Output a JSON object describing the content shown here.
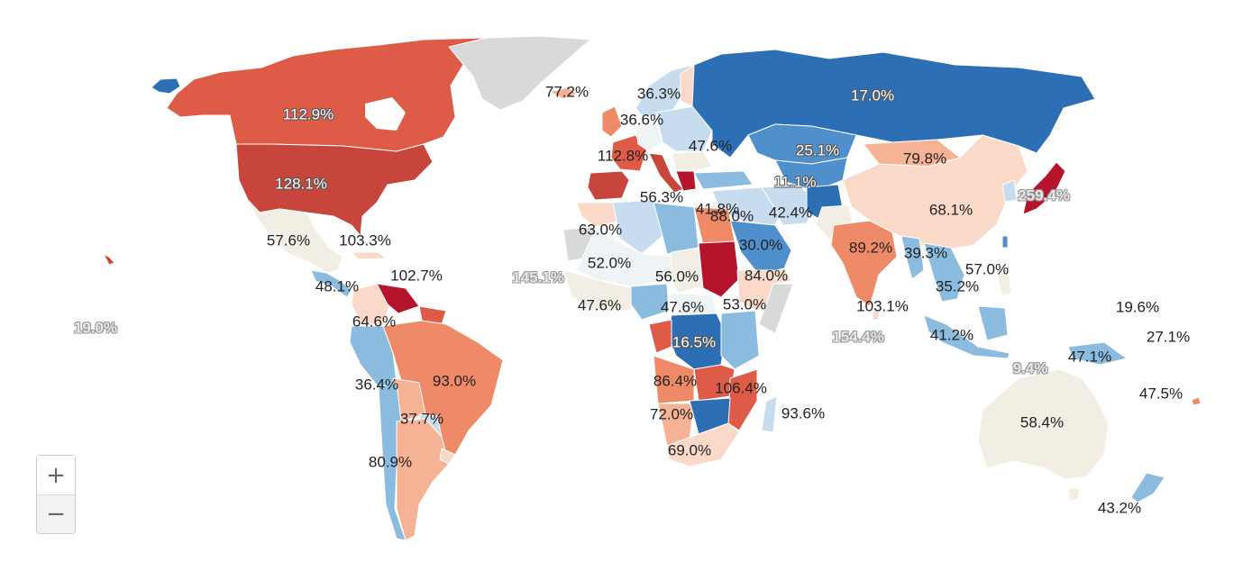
{
  "colors": {
    "nodata": "#d9d9d9",
    "water": "#ffffff",
    "border": "#ffffff",
    "scale": [
      "#2c6fb4",
      "#4f8fcb",
      "#8bbce0",
      "#c7dcee",
      "#eef3f6",
      "#f2eee4",
      "#fad9c8",
      "#f6b295",
      "#ee8a67",
      "#de5c47",
      "#c8453b",
      "#b5152c"
    ]
  },
  "zoom": {
    "in_label": "+",
    "out_label": "−"
  },
  "labels": [
    {
      "value": "112.9%",
      "style": "dark"
    },
    {
      "value": "128.1%",
      "style": "dark"
    },
    {
      "value": "77.2%",
      "style": "normal"
    },
    {
      "value": "36.3%",
      "style": "normal"
    },
    {
      "value": "36.6%",
      "style": "normal"
    },
    {
      "value": "47.6%",
      "style": "normal"
    },
    {
      "value": "112.8%",
      "style": "normal"
    },
    {
      "value": "17.0%",
      "style": "dark"
    },
    {
      "value": "25.1%",
      "style": "dark"
    },
    {
      "value": "79.8%",
      "style": "normal"
    },
    {
      "value": "11.1%",
      "style": "dark"
    },
    {
      "value": "259.4%",
      "style": "ghost"
    },
    {
      "value": "41.8%",
      "style": "normal"
    },
    {
      "value": "56.3%",
      "style": "normal"
    },
    {
      "value": "88.0%",
      "style": "normal"
    },
    {
      "value": "42.4%",
      "style": "normal"
    },
    {
      "value": "68.1%",
      "style": "normal"
    },
    {
      "value": "63.0%",
      "style": "normal"
    },
    {
      "value": "30.0%",
      "style": "normal"
    },
    {
      "value": "89.2%",
      "style": "normal"
    },
    {
      "value": "39.3%",
      "style": "normal"
    },
    {
      "value": "57.6%",
      "style": "normal"
    },
    {
      "value": "103.3%",
      "style": "normal"
    },
    {
      "value": "52.0%",
      "style": "normal"
    },
    {
      "value": "56.0%",
      "style": "normal"
    },
    {
      "value": "84.0%",
      "style": "normal"
    },
    {
      "value": "57.0%",
      "style": "normal"
    },
    {
      "value": "102.7%",
      "style": "normal"
    },
    {
      "value": "145.1%",
      "style": "ghost"
    },
    {
      "value": "48.1%",
      "style": "normal"
    },
    {
      "value": "47.6%",
      "style": "normal"
    },
    {
      "value": "47.6%",
      "style": "normal"
    },
    {
      "value": "53.0%",
      "style": "normal"
    },
    {
      "value": "35.2%",
      "style": "normal"
    },
    {
      "value": "103.1%",
      "style": "normal"
    },
    {
      "value": "19.6%",
      "style": "normal"
    },
    {
      "value": "19.0%",
      "style": "ghost"
    },
    {
      "value": "64.6%",
      "style": "normal"
    },
    {
      "value": "16.5%",
      "style": "dark"
    },
    {
      "value": "154.4%",
      "style": "ghost"
    },
    {
      "value": "41.2%",
      "style": "normal"
    },
    {
      "value": "27.1%",
      "style": "normal"
    },
    {
      "value": "9.4%",
      "style": "ghost"
    },
    {
      "value": "47.1%",
      "style": "normal"
    },
    {
      "value": "36.4%",
      "style": "normal"
    },
    {
      "value": "93.0%",
      "style": "normal"
    },
    {
      "value": "86.4%",
      "style": "normal"
    },
    {
      "value": "106.4%",
      "style": "normal"
    },
    {
      "value": "47.5%",
      "style": "normal"
    },
    {
      "value": "37.7%",
      "style": "normal"
    },
    {
      "value": "72.0%",
      "style": "normal"
    },
    {
      "value": "93.6%",
      "style": "normal"
    },
    {
      "value": "58.4%",
      "style": "normal"
    },
    {
      "value": "69.0%",
      "style": "normal"
    },
    {
      "value": "80.9%",
      "style": "normal"
    },
    {
      "value": "43.2%",
      "style": "normal"
    }
  ]
}
